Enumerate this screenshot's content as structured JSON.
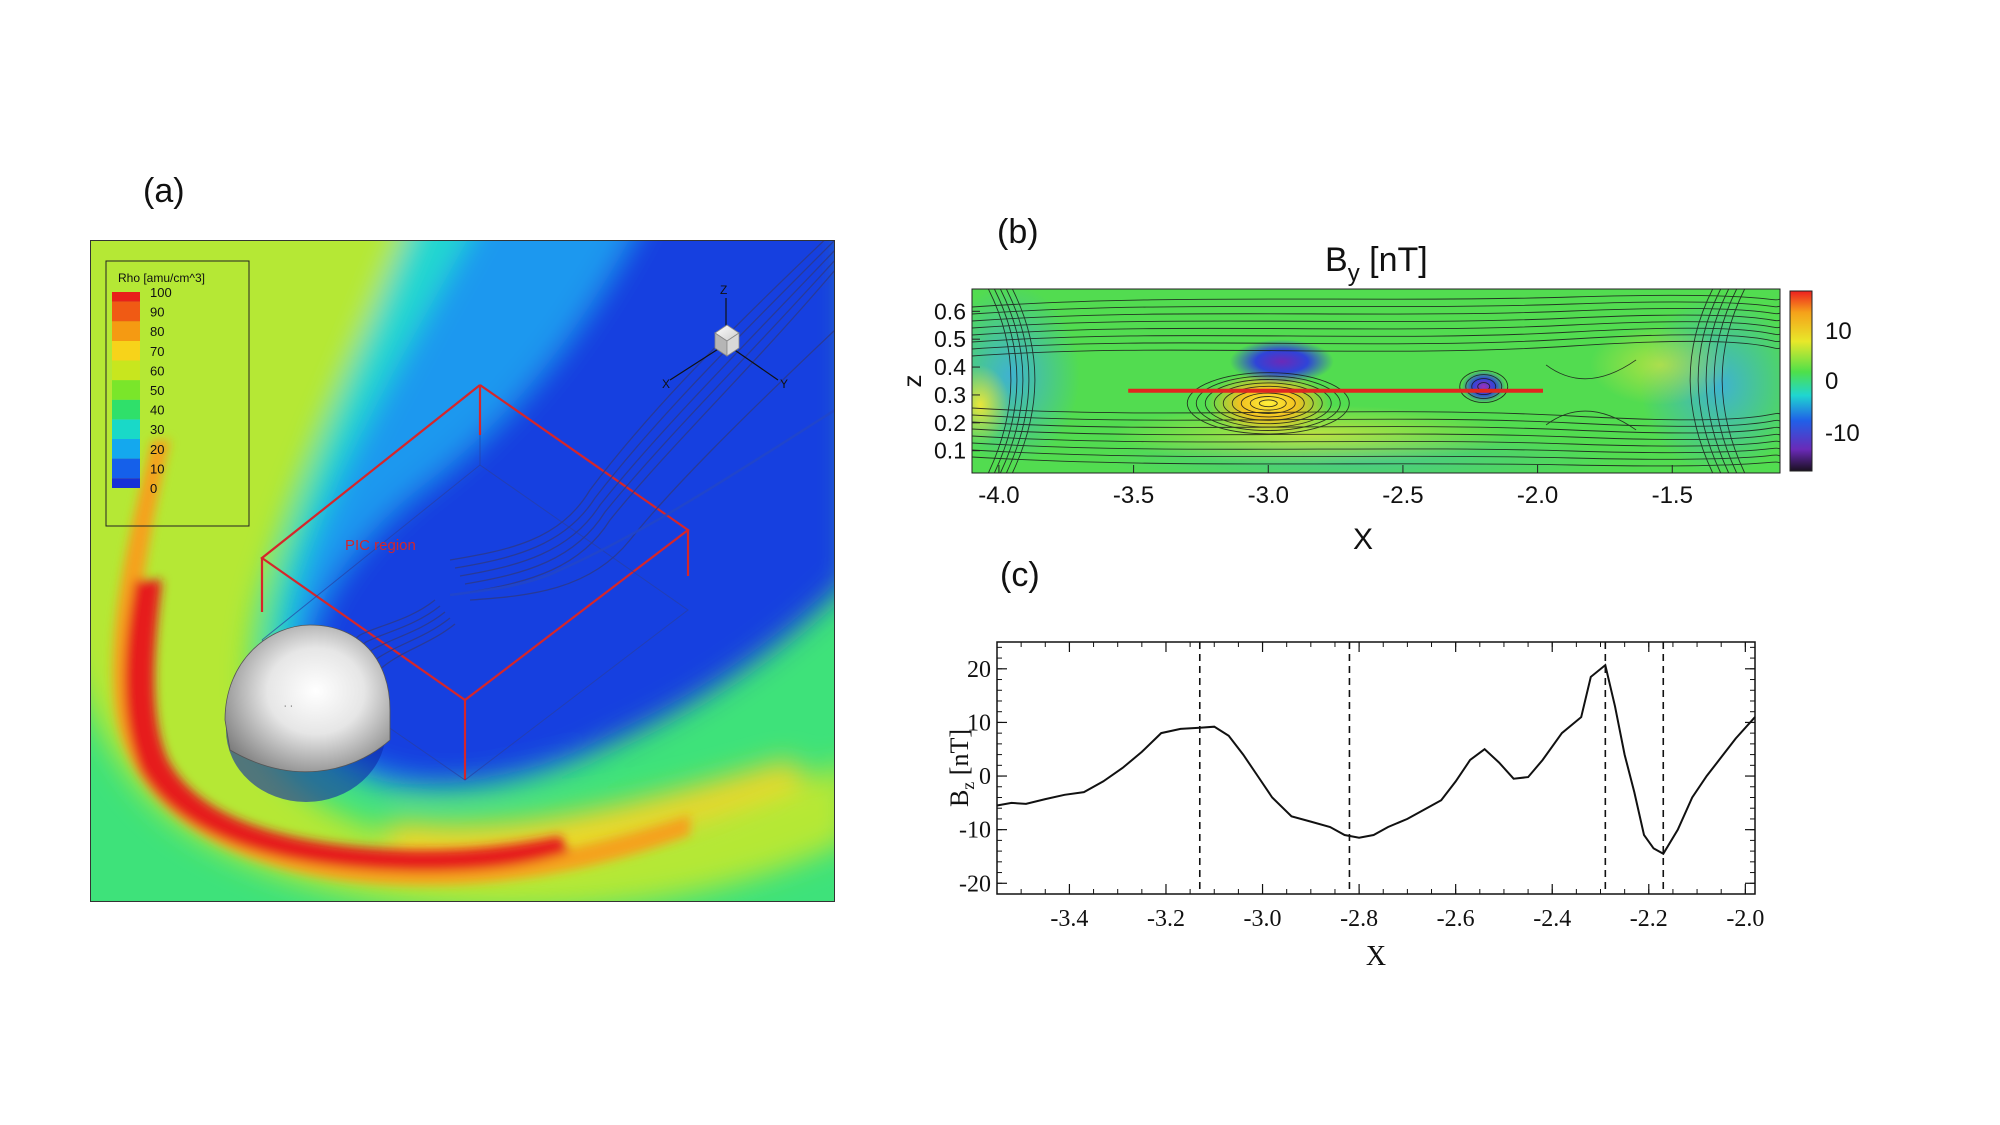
{
  "panels": {
    "a": {
      "label": "(a)",
      "legend": {
        "title": "Rho [amu/cm^3]",
        "levels": [
          "100",
          "90",
          "80",
          "70",
          "60",
          "50",
          "40",
          "30",
          "20",
          "10",
          "0"
        ],
        "colors": [
          "#e8201a",
          "#f05a14",
          "#f59a12",
          "#f7d31a",
          "#c8e61e",
          "#7ae62a",
          "#2fe06a",
          "#19d9c8",
          "#14a8ee",
          "#1560ea",
          "#1730d8"
        ]
      },
      "box_label": "PIC region",
      "axes": {
        "z": "Z",
        "x": "X",
        "y": "Y"
      }
    },
    "b": {
      "label": "(b)",
      "title_main": "B",
      "title_sub": "y",
      "title_unit": " [nT]",
      "xlabel": "X",
      "ylabel": "z",
      "colorbar_ticks": [
        "10",
        "0",
        "-10"
      ]
    },
    "c": {
      "label": "(c)",
      "xlabel": "X",
      "ylabel_main": "B",
      "ylabel_sub": "z",
      "ylabel_unit": " [nT]"
    }
  },
  "chart_data": [
    {
      "id": "b",
      "type": "heatmap",
      "title": "By [nT]",
      "xlabel": "X",
      "ylabel": "z",
      "xlim": [
        -4.1,
        -1.1
      ],
      "ylim": [
        0.02,
        0.68
      ],
      "x_ticks": [
        -4.0,
        -3.5,
        -3.0,
        -2.5,
        -2.0,
        -1.5
      ],
      "x_tick_labels": [
        "-4.0",
        "-3.5",
        "-3.0",
        "-2.5",
        "-2.0",
        "-1.5"
      ],
      "y_ticks": [
        0.1,
        0.2,
        0.3,
        0.4,
        0.5,
        0.6
      ],
      "y_tick_labels": [
        "0.1",
        "0.2",
        "0.3",
        "0.4",
        "0.5",
        "0.6"
      ],
      "colorbar_range": [
        -18,
        18
      ],
      "features": [
        {
          "name": "positive-island",
          "x": -3.0,
          "z": 0.27,
          "By": 15
        },
        {
          "name": "negative-island",
          "x": -2.95,
          "z": 0.42,
          "By": -14
        },
        {
          "name": "small-island",
          "x": -2.2,
          "z": 0.33,
          "By": -12
        }
      ],
      "cut_line": {
        "x": [
          -3.52,
          -1.98
        ],
        "z": 0.315
      }
    },
    {
      "id": "c",
      "type": "line",
      "xlabel": "X",
      "ylabel": "Bz [nT]",
      "xlim": [
        -3.55,
        -1.98
      ],
      "ylim": [
        -22,
        25
      ],
      "x_ticks": [
        -3.4,
        -3.2,
        -3.0,
        -2.8,
        -2.6,
        -2.4,
        -2.2,
        -2.0
      ],
      "x_tick_labels": [
        "-3.4",
        "-3.2",
        "-3.0",
        "-2.8",
        "-2.6",
        "-2.4",
        "-2.2",
        "-2.0"
      ],
      "y_ticks": [
        20,
        10,
        0,
        -10,
        -20
      ],
      "y_tick_labels": [
        "20",
        "10",
        "0",
        "-10",
        "-20"
      ],
      "series": [
        {
          "name": "Bz",
          "x": [
            -3.55,
            -3.52,
            -3.49,
            -3.45,
            -3.41,
            -3.37,
            -3.33,
            -3.29,
            -3.25,
            -3.21,
            -3.17,
            -3.13,
            -3.1,
            -3.07,
            -3.04,
            -3.01,
            -2.98,
            -2.94,
            -2.9,
            -2.86,
            -2.83,
            -2.8,
            -2.77,
            -2.74,
            -2.7,
            -2.66,
            -2.63,
            -2.6,
            -2.57,
            -2.54,
            -2.51,
            -2.48,
            -2.45,
            -2.42,
            -2.38,
            -2.34,
            -2.32,
            -2.29,
            -2.27,
            -2.25,
            -2.23,
            -2.21,
            -2.19,
            -2.17,
            -2.14,
            -2.11,
            -2.08,
            -2.05,
            -2.02,
            -1.98
          ],
          "y": [
            -5.5,
            -5.0,
            -5.2,
            -4.3,
            -3.5,
            -3.0,
            -1.0,
            1.5,
            4.5,
            8.0,
            8.8,
            9.0,
            9.2,
            7.5,
            4.0,
            0.0,
            -4.0,
            -7.5,
            -8.5,
            -9.5,
            -11.0,
            -11.5,
            -11.0,
            -9.5,
            -8.0,
            -6.0,
            -4.5,
            -1.0,
            3.0,
            5.0,
            2.5,
            -0.5,
            -0.2,
            3.0,
            8.0,
            11.0,
            18.5,
            20.7,
            13.0,
            4.0,
            -3.0,
            -11.0,
            -13.5,
            -14.5,
            -10.0,
            -4.0,
            0.0,
            3.5,
            7.0,
            11.0
          ]
        }
      ],
      "vertical_dashed_lines": [
        -3.13,
        -2.82,
        -2.29,
        -2.17
      ]
    }
  ]
}
